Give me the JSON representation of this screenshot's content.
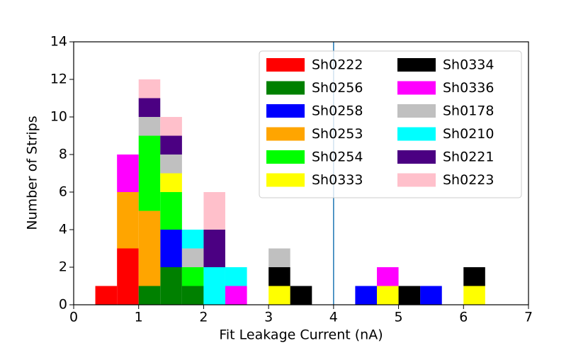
{
  "chart_data": {
    "type": "histogram",
    "x_label": "Fit Leakage Current (nA)",
    "y_label": "Number of Strips",
    "bins": [
      0.333,
      0.667,
      1,
      1.333,
      1.667,
      2,
      2.333,
      2.667,
      3,
      3.333,
      3.667,
      4,
      4.333,
      4.667,
      5,
      5.333,
      5.667,
      6,
      6.333
    ],
    "stacked": true,
    "series": [
      {
        "name": "Sh0222",
        "color": "#ff0000",
        "values": [
          1,
          3,
          0,
          0,
          0,
          0,
          0,
          0,
          0,
          0,
          0,
          0,
          0,
          0,
          0,
          0,
          0,
          0
        ]
      },
      {
        "name": "Sh0256",
        "color": "#008000",
        "values": [
          0,
          0,
          1,
          2,
          1,
          0,
          0,
          0,
          0,
          0,
          0,
          0,
          0,
          0,
          0,
          0,
          0,
          0
        ]
      },
      {
        "name": "Sh0258",
        "color": "#0000ff",
        "values": [
          0,
          0,
          0,
          2,
          0,
          0,
          0,
          0,
          0,
          0,
          0,
          0,
          1,
          0,
          0,
          1,
          0,
          0
        ]
      },
      {
        "name": "Sh0253",
        "color": "#ffa500",
        "values": [
          0,
          3,
          4,
          0,
          0,
          0,
          0,
          0,
          0,
          0,
          0,
          0,
          0,
          0,
          0,
          0,
          0,
          0
        ]
      },
      {
        "name": "Sh0254",
        "color": "#00ff00",
        "values": [
          0,
          0,
          4,
          2,
          1,
          0,
          0,
          0,
          0,
          0,
          0,
          0,
          0,
          0,
          0,
          0,
          0,
          0
        ]
      },
      {
        "name": "Sh0333",
        "color": "#ffff00",
        "values": [
          0,
          0,
          0,
          1,
          0,
          0,
          0,
          0,
          1,
          0,
          0,
          0,
          0,
          1,
          0,
          0,
          0,
          1
        ]
      },
      {
        "name": "Sh0334",
        "color": "#000000",
        "values": [
          0,
          0,
          0,
          0,
          0,
          0,
          0,
          0,
          1,
          1,
          0,
          0,
          0,
          0,
          1,
          0,
          0,
          1
        ]
      },
      {
        "name": "Sh0336",
        "color": "#ff00ff",
        "values": [
          0,
          2,
          0,
          0,
          0,
          0,
          1,
          0,
          0,
          0,
          0,
          0,
          0,
          1,
          0,
          0,
          0,
          0
        ]
      },
      {
        "name": "Sh0178",
        "color": "#c0c0c0",
        "values": [
          0,
          0,
          1,
          1,
          1,
          0,
          0,
          0,
          1,
          0,
          0,
          0,
          0,
          0,
          0,
          0,
          0,
          0
        ]
      },
      {
        "name": "Sh0210",
        "color": "#00ffff",
        "values": [
          0,
          0,
          0,
          0,
          1,
          2,
          1,
          0,
          0,
          0,
          0,
          0,
          0,
          0,
          0,
          0,
          0,
          0
        ]
      },
      {
        "name": "Sh0221",
        "color": "#4b0082",
        "values": [
          0,
          0,
          1,
          1,
          0,
          2,
          0,
          0,
          0,
          0,
          0,
          0,
          0,
          0,
          0,
          0,
          0,
          0
        ]
      },
      {
        "name": "Sh0223",
        "color": "#ffc0cb",
        "values": [
          0,
          0,
          1,
          1,
          0,
          2,
          0,
          0,
          0,
          0,
          0,
          0,
          0,
          0,
          0,
          0,
          0,
          0
        ]
      }
    ],
    "vline": {
      "x": 4,
      "color": "#1f77b4"
    },
    "xlim": [
      0,
      7
    ],
    "xticks": [
      0,
      1,
      2,
      3,
      4,
      5,
      6,
      7
    ],
    "ylim": [
      0,
      14
    ],
    "yticks": [
      0,
      2,
      4,
      6,
      8,
      10,
      12,
      14
    ],
    "legend": "upper right",
    "legend_columns": 2,
    "grid": false
  }
}
